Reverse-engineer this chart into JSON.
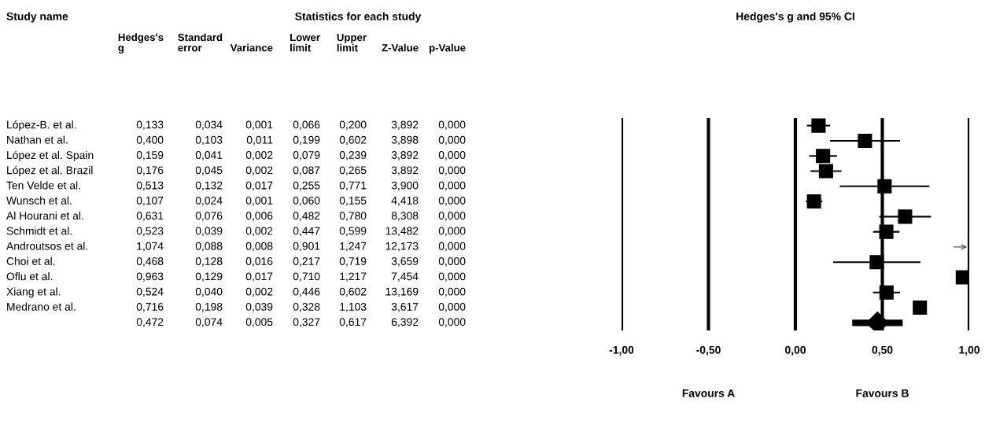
{
  "chart_data": [
    {
      "type": "other",
      "title": "Statistics for each study",
      "annotations": [
        "Study name"
      ],
      "categories": [
        "Hedges's\ng",
        "Standard\nerror",
        "Variance",
        "Lower\nlimit",
        "Upper\nlimit",
        "Z-Value",
        "p-Value"
      ],
      "y_categories": [
        "López-B. et al.",
        "Nathan et al.",
        "López et al. Spain",
        "López et al. Brazil",
        "Ten Velde et al.",
        "Wunsch et al.",
        "Al Hourani et al.",
        "Schmidt et al.",
        "Androutsos et al.",
        "Choi et al.",
        "Oflu et al.",
        "Xiang et al.",
        "Medrano et al.",
        null
      ],
      "cell_labels": [
        [
          "0,133",
          "0,034",
          "0,001",
          "0,066",
          "0,200",
          "3,892",
          "0,000"
        ],
        [
          "0,400",
          "0,103",
          "0,011",
          "0,199",
          "0,602",
          "3,898",
          "0,000"
        ],
        [
          "0,159",
          "0,041",
          "0,002",
          "0,079",
          "0,239",
          "3,892",
          "0,000"
        ],
        [
          "0,176",
          "0,045",
          "0,002",
          "0,087",
          "0,265",
          "3,892",
          "0,000"
        ],
        [
          "0,513",
          "0,132",
          "0,017",
          "0,255",
          "0,771",
          "3,900",
          "0,000"
        ],
        [
          "0,107",
          "0,024",
          "0,001",
          "0,060",
          "0,155",
          "4,418",
          "0,000"
        ],
        [
          "0,631",
          "0,076",
          "0,006",
          "0,482",
          "0,780",
          "8,308",
          "0,000"
        ],
        [
          "0,523",
          "0,039",
          "0,002",
          "0,447",
          "0,599",
          "13,482",
          "0,000"
        ],
        [
          "1,074",
          "0,088",
          "0,008",
          "0,901",
          "1,247",
          "12,173",
          "0,000"
        ],
        [
          "0,468",
          "0,128",
          "0,016",
          "0,217",
          "0,719",
          "3,659",
          "0,000"
        ],
        [
          "0,963",
          "0,129",
          "0,017",
          "0,710",
          "1,217",
          "7,454",
          "0,000"
        ],
        [
          "0,524",
          "0,040",
          "0,002",
          "0,446",
          "0,602",
          "13,169",
          "0,000"
        ],
        [
          "0,716",
          "0,198",
          "0,039",
          "0,328",
          "1,103",
          "3,617",
          "0,000"
        ],
        [
          "0,472",
          "0,074",
          "0,005",
          "0,327",
          "0,617",
          "6,392",
          "0,000"
        ]
      ]
    },
    {
      "type": "scatter",
      "orientation": "horizontal",
      "title": "Hedges's g and 95% CI",
      "categories": [
        null,
        null,
        null,
        null,
        null,
        null,
        null,
        null,
        null,
        null,
        null,
        null,
        null,
        null
      ],
      "series": [
        {
          "marker": "square",
          "color": "#000000",
          "values": [
            0.133,
            0.4,
            0.159,
            0.176,
            0.513,
            0.107,
            0.631,
            0.523,
            null,
            0.468,
            0.963,
            0.524,
            0.716,
            null
          ],
          "errors": [
            [
              0.066,
              0.2
            ],
            [
              0.199,
              0.602
            ],
            [
              0.079,
              0.239
            ],
            [
              0.087,
              0.265
            ],
            [
              0.255,
              0.771
            ],
            [
              0.06,
              0.155
            ],
            [
              0.482,
              0.78
            ],
            [
              0.447,
              0.599
            ],
            null,
            [
              0.217,
              0.719
            ],
            null,
            [
              0.446,
              0.602
            ],
            null,
            null
          ]
        },
        {
          "marker": "diamond",
          "color": "#000000",
          "values": [
            null,
            null,
            null,
            null,
            null,
            null,
            null,
            null,
            null,
            null,
            null,
            null,
            null,
            0.472
          ],
          "errors": [
            null,
            null,
            null,
            null,
            null,
            null,
            null,
            null,
            null,
            null,
            null,
            null,
            null,
            [
              0.327,
              0.617
            ]
          ]
        }
      ],
      "xlim": [
        -1.0,
        1.0
      ],
      "xticks": [
        {
          "value": -1,
          "label": "-1,00"
        },
        {
          "value": -0.5,
          "label": "-0,50"
        },
        {
          "value": 0,
          "label": "0,00"
        },
        {
          "value": 0.5,
          "label": "0,50"
        },
        {
          "value": 1,
          "label": "1,00"
        }
      ],
      "grid": "x",
      "tick_labels": "x",
      "annotations": [
        "Favours A",
        "Favours B"
      ]
    }
  ]
}
